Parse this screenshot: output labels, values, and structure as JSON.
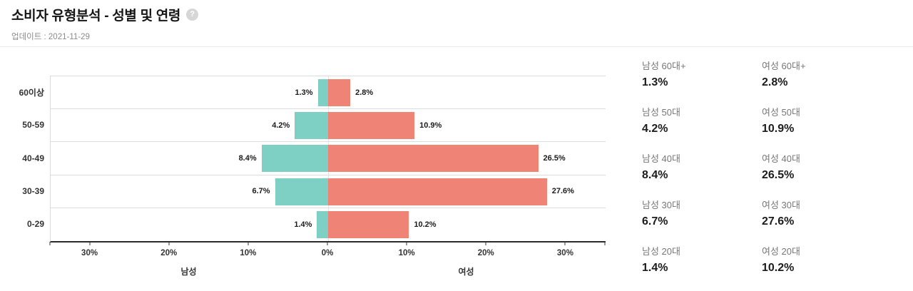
{
  "header": {
    "title": "소비자 유형분석 - 성별 및 연령",
    "help_icon": "?",
    "updated": "업데이트 : 2021-11-29"
  },
  "chart_data": {
    "type": "bar",
    "subtype": "butterfly-horizontal",
    "title": "소비자 유형분석 - 성별 및 연령",
    "categories": [
      "60이상",
      "50-59",
      "40-49",
      "30-39",
      "0-29"
    ],
    "series": [
      {
        "name": "남성",
        "side": "left",
        "color": "#7ecfc4",
        "values": [
          1.3,
          4.2,
          8.4,
          6.7,
          1.4
        ]
      },
      {
        "name": "여성",
        "side": "right",
        "color": "#ee8376",
        "values": [
          2.8,
          10.9,
          26.5,
          27.6,
          10.2
        ]
      }
    ],
    "value_suffix": "%",
    "axis": {
      "half_range": 35,
      "ticks": [
        -30,
        -20,
        -10,
        0,
        10,
        20,
        30
      ],
      "edge_marks": [
        -35,
        35
      ],
      "tick_suffix": "%",
      "left_label": "남성",
      "right_label": "여성"
    },
    "grid": true,
    "legend_position": "none",
    "colors": {
      "gridline": "#dddddd",
      "axis_line": "#2b2b2b",
      "center_line": "#e4e4e4"
    }
  },
  "stats": {
    "rows": [
      {
        "male_label": "남성 60대+",
        "male_value": "1.3%",
        "female_label": "여성 60대+",
        "female_value": "2.8%"
      },
      {
        "male_label": "남성 50대",
        "male_value": "4.2%",
        "female_label": "여성 50대",
        "female_value": "10.9%"
      },
      {
        "male_label": "남성 40대",
        "male_value": "8.4%",
        "female_label": "여성 40대",
        "female_value": "26.5%"
      },
      {
        "male_label": "남성 30대",
        "male_value": "6.7%",
        "female_label": "여성 30대",
        "female_value": "27.6%"
      },
      {
        "male_label": "남성 20대",
        "male_value": "1.4%",
        "female_label": "여성 20대",
        "female_value": "10.2%"
      }
    ]
  }
}
